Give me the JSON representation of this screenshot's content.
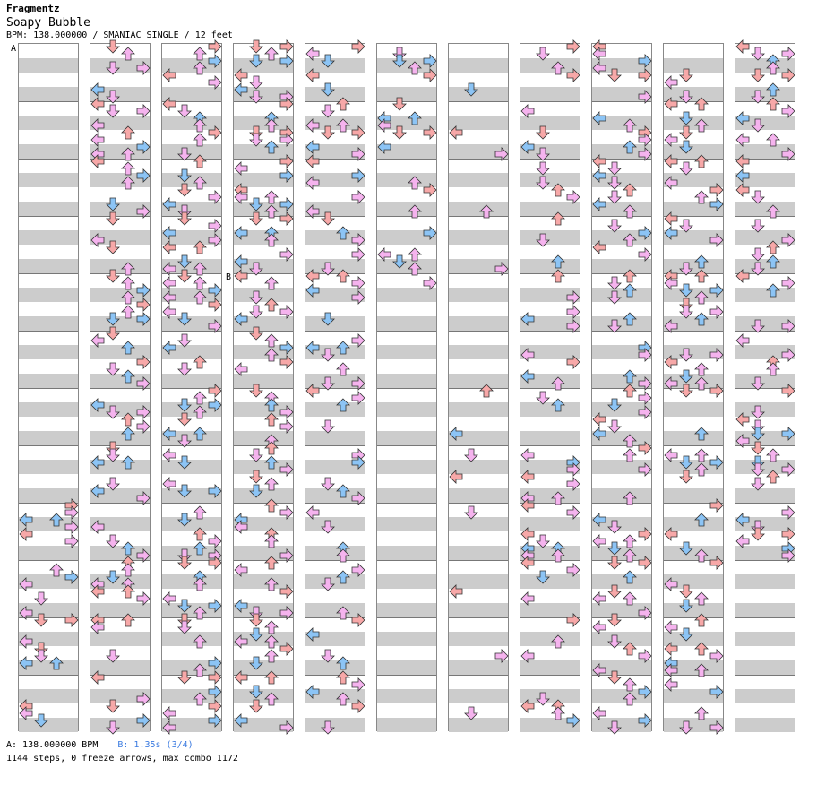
{
  "header": {
    "artist": "Fragmentz",
    "title": "Soapy Bubble",
    "bpm_line": "BPM: 138.000000 / SMANIAC SINGLE / 12 feet"
  },
  "markers": {
    "a": "A",
    "b": "B"
  },
  "footer": {
    "a_label": "A: 138.000000 BPM",
    "b_label": "B: 1.35s (3/4)",
    "stats": "1144 steps, 0 freeze arrows, max combo 1172"
  },
  "colors": {
    "quarter": "#f7a8a8",
    "eighth": "#8cc4f5",
    "sixteenth": "#f5b3ee",
    "band": "#cccccc",
    "outline": "#333333"
  },
  "chart": {
    "columns": 11,
    "steps": 1144,
    "freeze_arrows": 0,
    "max_combo": 1172
  }
}
